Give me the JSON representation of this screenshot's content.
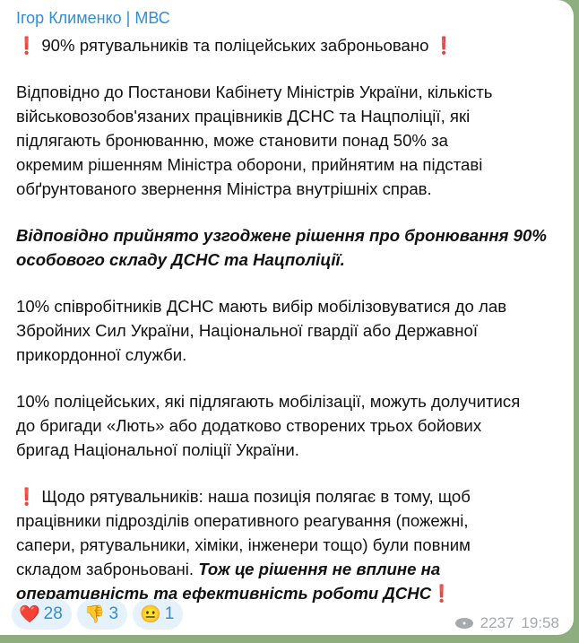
{
  "message": {
    "author": "Ігор Клименко | МВС",
    "title": "90% рятувальників та поліцейських заброньовано",
    "p1": [
      "Відповідно до Постанови Кабінету Міністрів України, кількість",
      "військовозобов'язаних працівників ДСНС та Нацполіції, які",
      "підлягають  бронюванню, може становити понад 50% за",
      "окремим рішенням Міністра оборони, прийнятим на підставі",
      "обґрунтованого звернення Міністра внутрішніх справ."
    ],
    "p2": [
      "Відповідно прийнято узгоджене рішення про бронювання 90%",
      "особового складу ДСНС та Нацполіції."
    ],
    "p3": [
      "10% співробітників ДСНС мають вибір мобілізовуватися до лав",
      "Збройних Сил України, Національної гвардії або Державної",
      "прикордонної служби."
    ],
    "p4": [
      "10% поліцейських, які підлягають мобілізації, можуть долучитися",
      "до бригади «Лють» або додатково створених трьох бойових",
      "бригад Національної поліції України."
    ],
    "p5": [
      "Щодо рятувальників: наша позиція полягає в тому, щоб",
      "працівники підрозділів оперативного реагування (пожежні,",
      "сапери, рятувальники, хіміки, інженери тощо) були повним",
      "складом заброньовані. ",
      "Тож це рішення не вплине на",
      "оперативність та ефективність роботи ДСНС"
    ],
    "exclamation": "❗"
  },
  "reactions": [
    {
      "emoji": "❤️",
      "icon": "heart-icon",
      "count": "28"
    },
    {
      "emoji": "👎",
      "icon": "thumbs-down-icon",
      "count": "3"
    },
    {
      "emoji": "😐",
      "icon": "neutral-face-icon",
      "count": "1"
    }
  ],
  "footer": {
    "views": "2237",
    "time": "19:58"
  },
  "colors": {
    "author": "#2f8fd0",
    "background": "#8fae7f",
    "reaction_bg": "#e5f1fb"
  }
}
